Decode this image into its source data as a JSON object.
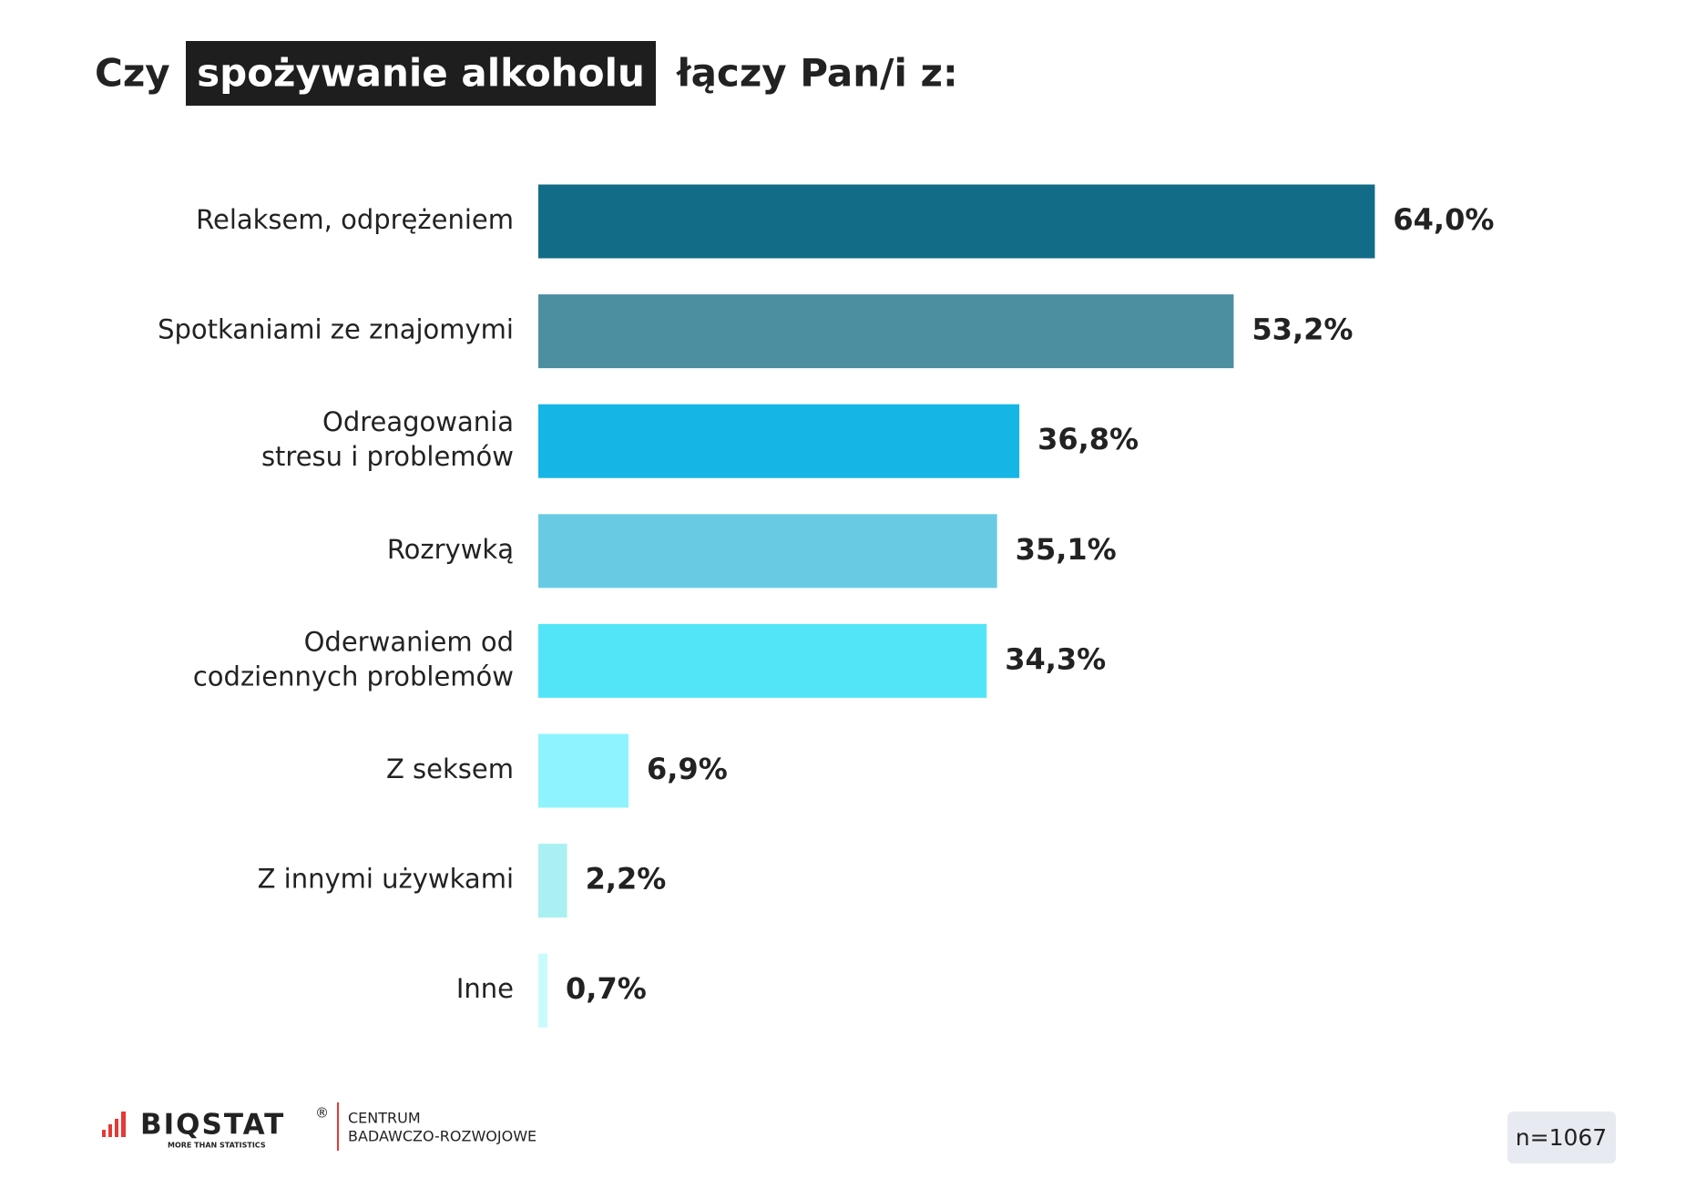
{
  "chart_data": {
    "type": "hbar",
    "title_parts": [
      "Czy",
      "spożywanie alkoholu",
      "łączy Pan/i z:"
    ],
    "categories": [
      "Relaksem, odprężeniem",
      "Spotkaniami ze znajomymi",
      "Odreagowania\nstresu i problemów",
      "Rozrywką",
      "Oderwaniem od\ncodziennych problemów",
      "Z seksem",
      "Z innymi używkami",
      "Inne"
    ],
    "values": [
      64.0,
      53.2,
      36.8,
      35.1,
      34.3,
      6.9,
      2.2,
      0.7
    ],
    "value_labels": [
      "64,0%",
      "53,2%",
      "36,8%",
      "35,1%",
      "34,3%",
      "6,9%",
      "2,2%",
      "0,7%"
    ],
    "colors": [
      "#136c87",
      "#4b8fa0",
      "#15b5e6",
      "#68cbe3",
      "#52e5f8",
      "#8ff3fd",
      "#aaf0f2",
      "#c9fbfd"
    ],
    "xlim": [
      0,
      80
    ],
    "note": "n=1067"
  },
  "footer": {
    "brand": "BIQSTAT",
    "registered": "®",
    "tagline": "MORE THAN STATISTICS",
    "unit_line1": "CENTRUM",
    "unit_line2": "BADAWCZO-ROZWOJOWE"
  }
}
